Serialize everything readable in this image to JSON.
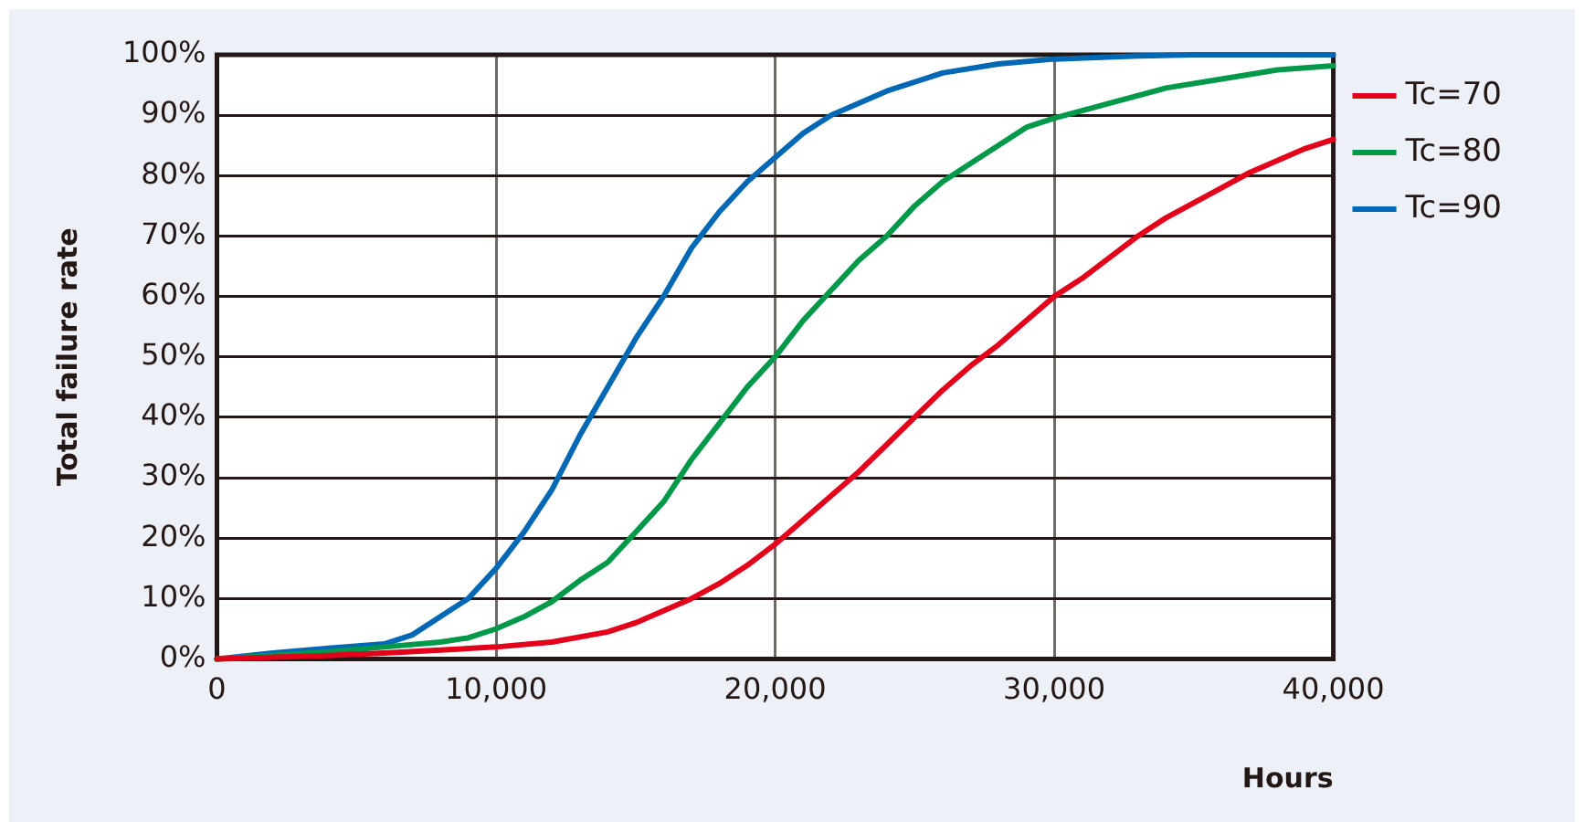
{
  "chart_data": {
    "type": "line",
    "xlabel": "Hours",
    "ylabel": "Total failure rate",
    "xlim": [
      0,
      40000
    ],
    "xticks": [
      0,
      {
        "value": 10000,
        "label": "10,000"
      },
      {
        "value": 20000,
        "label": "20,000"
      },
      {
        "value": 30000,
        "label": "30,000"
      },
      {
        "value": 40000,
        "label": "40,000"
      }
    ],
    "ylim": [
      0,
      100
    ],
    "yticks": [
      {
        "value": 0,
        "label": "0%"
      },
      {
        "value": 10,
        "label": "10%"
      },
      {
        "value": 20,
        "label": "20%"
      },
      {
        "value": 30,
        "label": "30%"
      },
      {
        "value": 40,
        "label": "40%"
      },
      {
        "value": 50,
        "label": "50%"
      },
      {
        "value": 60,
        "label": "60%"
      },
      {
        "value": 70,
        "label": "70%"
      },
      {
        "value": 80,
        "label": "80%"
      },
      {
        "value": 90,
        "label": "90%"
      },
      {
        "value": 100,
        "label": "100%"
      }
    ],
    "grid": true,
    "legend": "right",
    "marker": "none",
    "line_style": "solid",
    "series": [
      {
        "name": "Tc=70",
        "color": "#e3001b",
        "x": [
          0,
          4000,
          6000,
          8000,
          10000,
          12000,
          14000,
          15000,
          16000,
          17000,
          18000,
          19000,
          20000,
          21000,
          22000,
          23000,
          24000,
          25000,
          26000,
          27000,
          28000,
          29000,
          30000,
          31000,
          32000,
          33000,
          34000,
          35000,
          36000,
          37000,
          38000,
          39000,
          40000
        ],
        "values": [
          0,
          0.6,
          1,
          1.5,
          2,
          2.8,
          4.5,
          6,
          8,
          10,
          12.5,
          15.5,
          19,
          23,
          27,
          31,
          35.5,
          40,
          44.5,
          48.5,
          52,
          56,
          60,
          63,
          66.5,
          70,
          73,
          75.5,
          78,
          80.5,
          82.5,
          84.5,
          86
        ]
      },
      {
        "name": "Tc=80",
        "color": "#00994a",
        "x": [
          0,
          4000,
          6000,
          8000,
          9000,
          10000,
          11000,
          12000,
          13000,
          14000,
          15000,
          16000,
          17000,
          18000,
          19000,
          20000,
          21000,
          22000,
          23000,
          24000,
          25000,
          26000,
          27000,
          28000,
          29000,
          30000,
          32000,
          34000,
          36000,
          38000,
          40000
        ],
        "values": [
          0,
          1.2,
          2,
          2.8,
          3.5,
          5,
          7,
          9.5,
          13,
          16,
          21,
          26,
          33,
          39,
          45,
          50,
          56,
          61,
          66,
          70,
          75,
          79,
          82,
          85,
          88,
          89.5,
          92,
          94.5,
          96,
          97.5,
          98.2
        ]
      },
      {
        "name": "Tc=90",
        "color": "#0068b4",
        "x": [
          0,
          2000,
          4000,
          6000,
          7000,
          8000,
          9000,
          10000,
          11000,
          12000,
          13000,
          14000,
          15000,
          16000,
          17000,
          18000,
          19000,
          20000,
          21000,
          22000,
          24000,
          26000,
          28000,
          30000,
          33000,
          35000,
          40000
        ],
        "values": [
          0,
          1,
          1.8,
          2.5,
          4,
          7,
          10,
          15,
          21,
          28,
          37,
          45,
          53,
          60,
          68,
          74,
          79,
          83,
          87,
          90,
          94,
          97,
          98.5,
          99.3,
          99.8,
          100,
          100
        ]
      }
    ]
  }
}
